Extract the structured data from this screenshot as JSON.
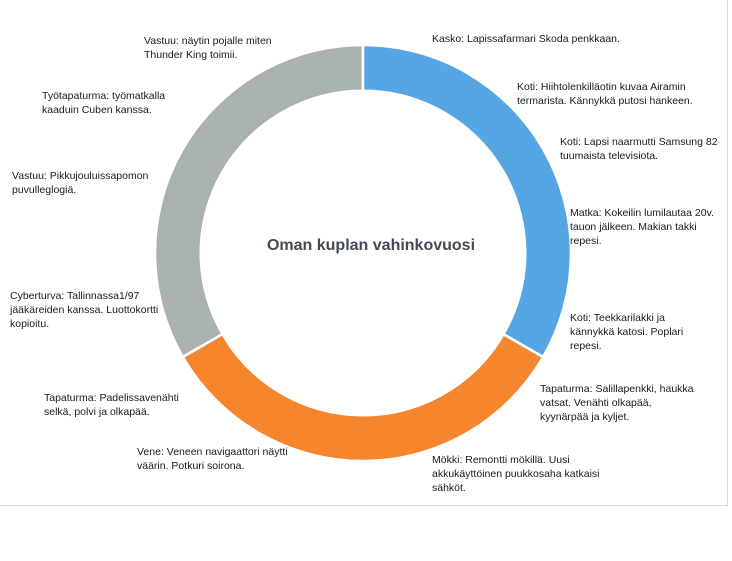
{
  "chart_data": {
    "type": "pie",
    "title": "Oman kuplan vahinkovuosi",
    "categories": [
      "Koti",
      "Tapaturma",
      "Vastuu"
    ],
    "series": [
      {
        "values": [
          1,
          1,
          1
        ]
      }
    ],
    "colors": [
      "#57a6e4",
      "#f5862e",
      "#a9b2ae"
    ],
    "hole": 0.78,
    "legend": "none",
    "annotations": [
      "Kasko: Lapissafarmari Skoda penkkaan.",
      "Koti: Hiihtolenkilläotin kuvaa Airamin termarista. Kännykkä putosi hankeen.",
      "Koti: Lapsi naarmutti Samsung 82 tuumaista televisiota.",
      "Matka: Kokeilin lumilautaa 20v. tauon jälkeen. Makian takki repesi.",
      "Koti: Teekkarilakki ja kännykkä katosi. Poplari repesi.",
      "Tapaturma: Salillapenkki, haukka vatsat. Venähti olkapää, kyynärpää ja kyljet.",
      "Mökki: Remontti mökillä. Uusi akkukäyttöinen puukkosaha katkaisi sähköt.",
      "Vene: Veneen navigaattori näytti väärin. Potkuri soirona.",
      "Tapaturma: Padelissavenähti selkä, polvi ja olkapää.",
      "Cyberturva: Tallinnassa1/97 jääkäreiden kanssa. Luottokortti kopioitu.",
      "Vastuu: Pikkujouluissapomon puvulleglogiä.",
      "Työtapaturma: työmatkalla kaaduin Cuben kanssa.",
      "Vastuu: näytin pojalle miten Thunder King toimii."
    ]
  }
}
